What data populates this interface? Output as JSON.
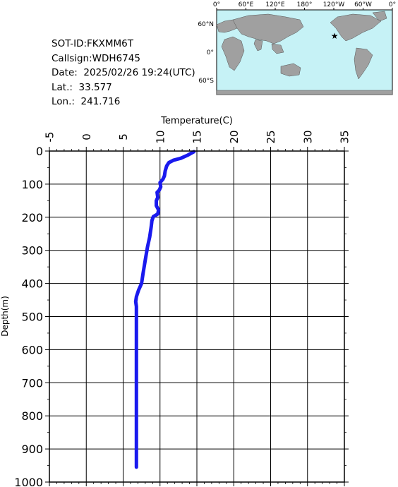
{
  "info": {
    "sot_id": "SOT-ID:FKXMM6T",
    "callsign": "Callsign:WDH6745",
    "date": "Date:  2025/02/26 19:24(UTC)",
    "lat": "Lat.:  33.577",
    "lon": "Lon.:  241.716"
  },
  "map": {
    "top_labels": [
      "0°",
      "60°E",
      "120°E",
      "180°",
      "120°W",
      "60°W",
      "0°"
    ],
    "left_labels": [
      "60°N",
      "0°",
      "60°S"
    ],
    "ocean_color": "#c6f2f6",
    "land_color": "#a0a0a0",
    "marker": {
      "lat": 33.577,
      "lon": 241.716,
      "color": "#ff1a1a",
      "icon": "star-icon"
    }
  },
  "chart_data": {
    "type": "line",
    "title": "",
    "xlabel": "Temperature(C)",
    "ylabel": "Depth(m)",
    "xlim": [
      -5,
      35
    ],
    "ylim": [
      0,
      1000
    ],
    "x_ticks": [
      -5,
      0,
      5,
      10,
      15,
      20,
      25,
      30,
      35
    ],
    "y_ticks": [
      0,
      100,
      200,
      300,
      400,
      500,
      600,
      700,
      800,
      900,
      1000
    ],
    "x_axis_position": "top",
    "y_axis_inverted": true,
    "grid": true,
    "line_color": "#1a1aee",
    "series": [
      {
        "points": [
          [
            14.6,
            2
          ],
          [
            13.8,
            12
          ],
          [
            12.8,
            22
          ],
          [
            11.8,
            28
          ],
          [
            11.2,
            35
          ],
          [
            10.9,
            45
          ],
          [
            10.7,
            60
          ],
          [
            10.6,
            75
          ],
          [
            10.4,
            85
          ],
          [
            10.0,
            95
          ],
          [
            10.1,
            108
          ],
          [
            9.9,
            118
          ],
          [
            9.6,
            125
          ],
          [
            9.7,
            140
          ],
          [
            9.5,
            150
          ],
          [
            9.5,
            165
          ],
          [
            9.8,
            178
          ],
          [
            9.7,
            190
          ],
          [
            9.1,
            198
          ],
          [
            8.9,
            210
          ],
          [
            8.8,
            230
          ],
          [
            8.6,
            260
          ],
          [
            8.3,
            290
          ],
          [
            8.0,
            330
          ],
          [
            7.7,
            370
          ],
          [
            7.5,
            400
          ],
          [
            7.1,
            420
          ],
          [
            6.8,
            440
          ],
          [
            6.7,
            455
          ],
          [
            6.8,
            470
          ],
          [
            6.8,
            550
          ],
          [
            6.8,
            700
          ],
          [
            6.8,
            850
          ],
          [
            6.8,
            955
          ]
        ]
      }
    ]
  }
}
